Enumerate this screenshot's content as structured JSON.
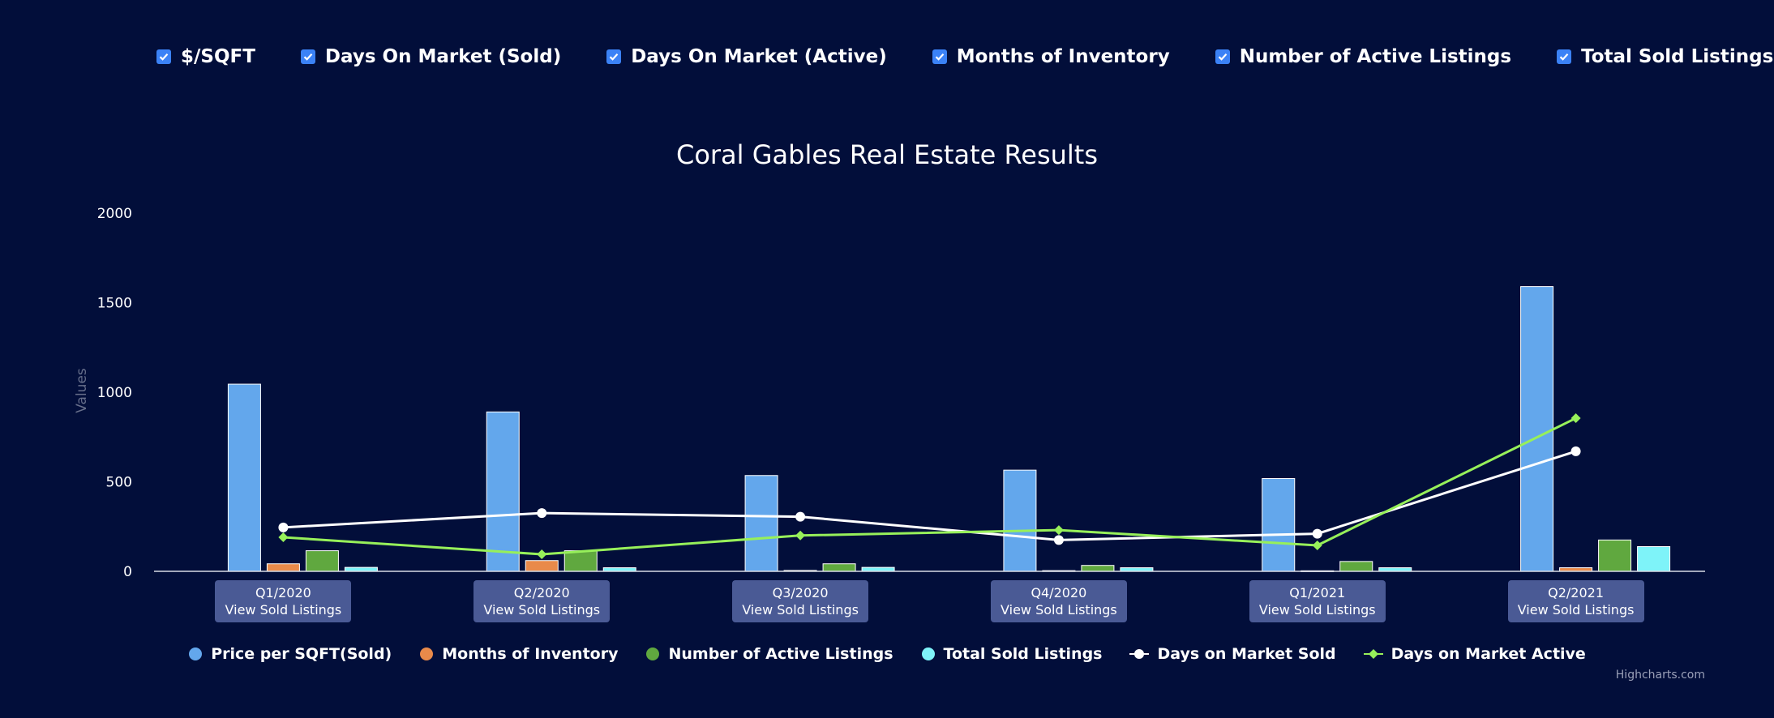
{
  "filters": [
    {
      "label": "$/SQFT",
      "checked": true
    },
    {
      "label": "Days On Market (Sold)",
      "checked": true
    },
    {
      "label": "Days On Market (Active)",
      "checked": true
    },
    {
      "label": "Months of Inventory",
      "checked": true
    },
    {
      "label": "Number of Active Listings",
      "checked": true
    },
    {
      "label": "Total Sold Listings",
      "checked": true
    }
  ],
  "buttons": {
    "view_label": "View Sold Listings"
  },
  "credits": "Highcharts.com",
  "colors": {
    "background": "#020e3a",
    "price": "#63a7ec",
    "months": "#e98a4a",
    "active_listings": "#60a83f",
    "sold_listings": "#7ef3f9",
    "dom_sold": "#ffffff",
    "dom_active": "#97f05a"
  },
  "chart_data": {
    "type": "bar",
    "title": "Coral Gables Real Estate Results",
    "ylabel": "Values",
    "ylim": [
      0,
      2000
    ],
    "yticks": [
      0,
      500,
      1000,
      1500,
      2000
    ],
    "grid": false,
    "legend_position": "bottom-center",
    "categories": [
      "Q1/2020",
      "Q2/2020",
      "Q3/2020",
      "Q4/2020",
      "Q1/2021",
      "Q2/2021"
    ],
    "series": [
      {
        "name": "Price per SQFT(Sold)",
        "type": "bar",
        "values": [
          1045,
          890,
          535,
          565,
          518,
          1590
        ]
      },
      {
        "name": "Months of Inventory",
        "type": "bar",
        "values": [
          42,
          60,
          5,
          4,
          3,
          20
        ]
      },
      {
        "name": "Number of Active Listings",
        "type": "bar",
        "values": [
          115,
          115,
          42,
          33,
          55,
          175
        ]
      },
      {
        "name": "Total Sold Listings",
        "type": "bar",
        "values": [
          22,
          20,
          22,
          20,
          20,
          138
        ]
      },
      {
        "name": "Days on Market Sold",
        "type": "line",
        "marker": "circle",
        "values": [
          245,
          325,
          305,
          175,
          210,
          670
        ]
      },
      {
        "name": "Days on Market Active",
        "type": "line",
        "marker": "diamond",
        "values": [
          190,
          95,
          200,
          230,
          145,
          855
        ]
      }
    ]
  }
}
